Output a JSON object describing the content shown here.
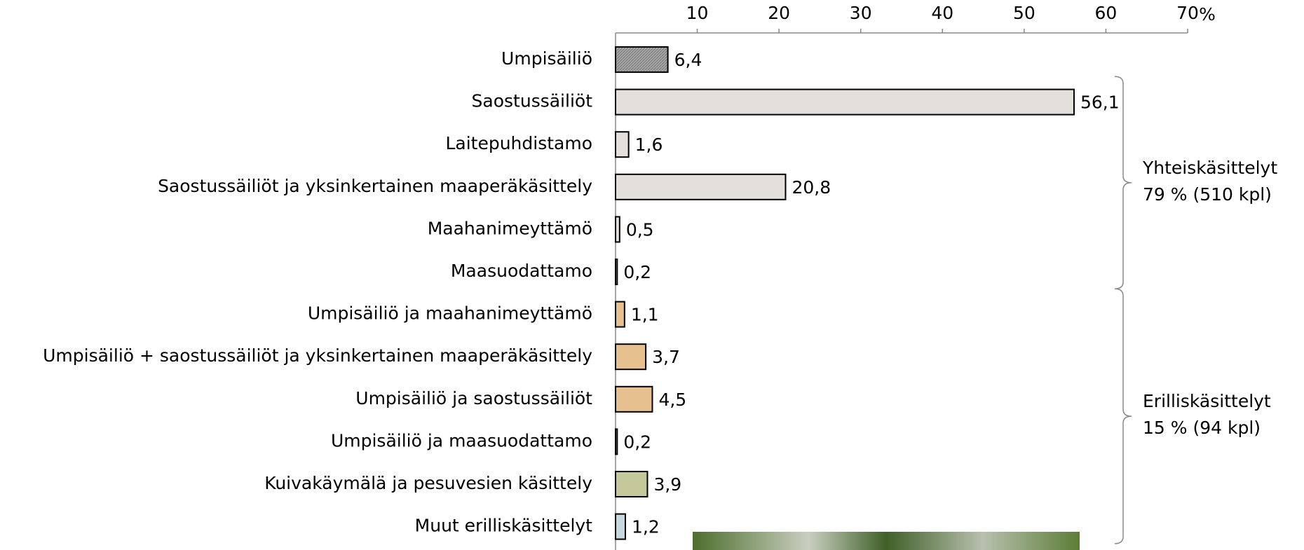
{
  "chart_data": {
    "type": "hbar",
    "x_label": "%",
    "categories": [
      "Umpisäiliö",
      "Saostussäiliöt",
      "Laitepuhdistamo",
      "Saostussäiliöt ja yksinkertainen maaperäkäsittely",
      "Maahanimeyttämö",
      "Maasuodattamo",
      "Umpisäiliö ja maahanimeyttämö",
      "Umpisäiliö + saostussäiliöt ja yksinkertainen maaperäkäsittely",
      "Umpisäiliö ja saostussäiliöt",
      "Umpisäiliö ja maasuodattamo",
      "Kuivakäymälä ja pesuvesien käsittely",
      "Muut erilliskäsittelyt"
    ],
    "values": [
      6.4,
      56.1,
      1.6,
      20.8,
      0.5,
      0.2,
      1.1,
      3.7,
      4.5,
      0.2,
      3.9,
      1.2
    ],
    "value_labels": [
      "6,4",
      "56,1",
      "1,6",
      "20,8",
      "0,5",
      "0,2",
      "1,1",
      "3,7",
      "4,5",
      "0,2",
      "3,9",
      "1,2"
    ],
    "colors": [
      "#a6a6a6",
      "#e3e0dc",
      "#e3e0dc",
      "#e3e0dc",
      "#e3e0dc",
      "#e3e0dc",
      "#e6c08f",
      "#e6c08f",
      "#e6c08f",
      "#e6c08f",
      "#c4c89a",
      "#c9d8e0"
    ],
    "xlim": [
      0,
      70
    ],
    "xticks": [
      10,
      20,
      30,
      40,
      50,
      60,
      70
    ],
    "groups": [
      {
        "name": "Yhteiskäsittelyt",
        "note": "79 % (510 kpl)",
        "first": 1,
        "last": 5
      },
      {
        "name": "Erilliskäsittelyt",
        "note": "15 % (94 kpl)",
        "first": 6,
        "last": 11
      }
    ]
  }
}
